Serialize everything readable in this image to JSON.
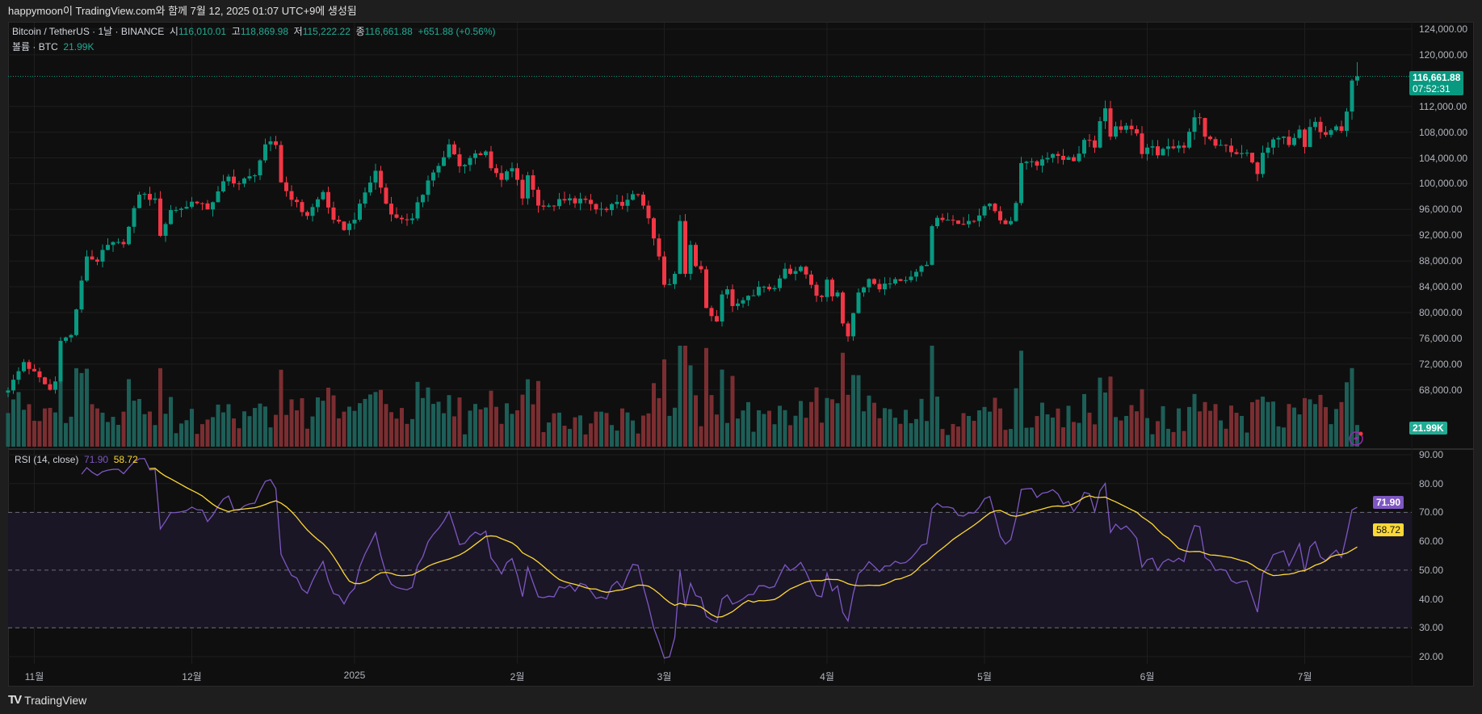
{
  "title": "happymoon이 TradingView.com와 함께 7월 12, 2025 01:07 UTC+9에 생성됨",
  "legend": {
    "symbol": "Bitcoin / TetherUS · 1날 · BINANCE",
    "open_label": "시",
    "open": "116,010.01",
    "high_label": "고",
    "high": "118,869.98",
    "low_label": "저",
    "low": "115,222.22",
    "close_label": "종",
    "close": "116,661.88",
    "change": "+651.88 (+0.56%)",
    "volume_label": "볼륨 · BTC",
    "volume": "21.99K"
  },
  "price_axis": {
    "ticks": [
      "124,000.00",
      "120,000.00",
      "112,000.00",
      "108,000.00",
      "104,000.00",
      "100,000.00",
      "96,000.00",
      "92,000.00",
      "88,000.00",
      "84,000.00",
      "80,000.00",
      "76,000.00",
      "72,000.00",
      "68,000.00"
    ],
    "tick_values": [
      124000,
      120000,
      112000,
      108000,
      104000,
      100000,
      96000,
      92000,
      88000,
      84000,
      80000,
      76000,
      72000,
      68000
    ],
    "last_price": "116,661.88",
    "countdown": "07:52:31",
    "volume_tag": "21.99K"
  },
  "rsi": {
    "label": "RSI (14, close)",
    "value": "71.90",
    "ma_value": "58.72",
    "ticks": [
      "90.00",
      "80.00",
      "70.00",
      "60.00",
      "50.00",
      "40.00",
      "30.00",
      "20.00"
    ],
    "tick_values": [
      90,
      80,
      70,
      60,
      50,
      40,
      30,
      20
    ],
    "upper_band": 70,
    "middle_band": 50,
    "lower_band": 30
  },
  "time_axis": [
    {
      "label": "11월",
      "day": 5
    },
    {
      "label": "12월",
      "day": 35
    },
    {
      "label": "2025",
      "day": 66
    },
    {
      "label": "2월",
      "day": 97
    },
    {
      "label": "3월",
      "day": 125
    },
    {
      "label": "4월",
      "day": 156
    },
    {
      "label": "5월",
      "day": 186
    },
    {
      "label": "6월",
      "day": 217
    },
    {
      "label": "7월",
      "day": 247
    }
  ],
  "colors": {
    "up": "#089981",
    "down": "#f23645",
    "rsi": "#7e57c2",
    "rsi_ma": "#fdd835",
    "last": "#089981"
  },
  "footer": {
    "brand": "TradingView"
  },
  "chart_data": {
    "type": "candlestick",
    "x_unit": "day index from 2024-10-27",
    "close_keypoints": [
      [
        0,
        67900
      ],
      [
        3,
        72300
      ],
      [
        8,
        68000
      ],
      [
        9,
        69300
      ],
      [
        10,
        75600
      ],
      [
        12,
        76500
      ],
      [
        15,
        88700
      ],
      [
        17,
        87900
      ],
      [
        19,
        90500
      ],
      [
        22,
        90600
      ],
      [
        25,
        98300
      ],
      [
        28,
        97700
      ],
      [
        29,
        91900
      ],
      [
        31,
        95900
      ],
      [
        34,
        96400
      ],
      [
        35,
        97200
      ],
      [
        38,
        96000
      ],
      [
        40,
        98800
      ],
      [
        42,
        101100
      ],
      [
        44,
        100000
      ],
      [
        47,
        101300
      ],
      [
        49,
        106100
      ],
      [
        51,
        106000
      ],
      [
        52,
        100200
      ],
      [
        54,
        97500
      ],
      [
        57,
        95000
      ],
      [
        60,
        98700
      ],
      [
        62,
        94400
      ],
      [
        64,
        92800
      ],
      [
        66,
        94400
      ],
      [
        67,
        96900
      ],
      [
        70,
        102000
      ],
      [
        72,
        96900
      ],
      [
        74,
        94700
      ],
      [
        77,
        94600
      ],
      [
        80,
        100500
      ],
      [
        83,
        104100
      ],
      [
        84,
        106100
      ],
      [
        86,
        102700
      ],
      [
        89,
        104700
      ],
      [
        91,
        105000
      ],
      [
        92,
        102400
      ],
      [
        94,
        100600
      ],
      [
        96,
        102400
      ],
      [
        97,
        100600
      ],
      [
        98,
        97700
      ],
      [
        99,
        101300
      ],
      [
        101,
        96600
      ],
      [
        103,
        96600
      ],
      [
        106,
        97400
      ],
      [
        110,
        97500
      ],
      [
        112,
        96000
      ],
      [
        114,
        95900
      ],
      [
        118,
        97500
      ],
      [
        120,
        98300
      ],
      [
        121,
        96600
      ],
      [
        123,
        91500
      ],
      [
        124,
        88700
      ],
      [
        125,
        84300
      ],
      [
        126,
        84400
      ],
      [
        127,
        86000
      ],
      [
        128,
        94200
      ],
      [
        129,
        86000
      ],
      [
        130,
        90500
      ],
      [
        131,
        87200
      ],
      [
        132,
        86700
      ],
      [
        133,
        80700
      ],
      [
        135,
        78600
      ],
      [
        136,
        82800
      ],
      [
        137,
        83600
      ],
      [
        138,
        81000
      ],
      [
        141,
        82600
      ],
      [
        144,
        84000
      ],
      [
        146,
        83800
      ],
      [
        148,
        86800
      ],
      [
        149,
        86000
      ],
      [
        151,
        87100
      ],
      [
        152,
        85900
      ],
      [
        153,
        84300
      ],
      [
        154,
        82600
      ],
      [
        155,
        82400
      ],
      [
        156,
        85100
      ],
      [
        157,
        82500
      ],
      [
        158,
        83100
      ],
      [
        159,
        78300
      ],
      [
        160,
        76300
      ],
      [
        161,
        79900
      ],
      [
        162,
        83100
      ],
      [
        163,
        83900
      ],
      [
        164,
        85200
      ],
      [
        166,
        83600
      ],
      [
        168,
        84500
      ],
      [
        170,
        84900
      ],
      [
        175,
        87400
      ],
      [
        176,
        93400
      ],
      [
        177,
        94700
      ],
      [
        180,
        94300
      ],
      [
        182,
        93700
      ],
      [
        184,
        94200
      ],
      [
        186,
        96500
      ],
      [
        187,
        96900
      ],
      [
        189,
        94300
      ],
      [
        191,
        94200
      ],
      [
        192,
        97000
      ],
      [
        193,
        103200
      ],
      [
        194,
        103400
      ],
      [
        196,
        102800
      ],
      [
        198,
        104000
      ],
      [
        199,
        104600
      ],
      [
        201,
        103700
      ],
      [
        203,
        103500
      ],
      [
        205,
        106800
      ],
      [
        207,
        105600
      ],
      [
        208,
        109700
      ],
      [
        209,
        111700
      ],
      [
        210,
        107300
      ],
      [
        211,
        108900
      ],
      [
        213,
        109000
      ],
      [
        215,
        107800
      ],
      [
        216,
        104600
      ],
      [
        217,
        105600
      ],
      [
        218,
        105800
      ],
      [
        219,
        104400
      ],
      [
        220,
        105400
      ],
      [
        222,
        105500
      ],
      [
        224,
        105600
      ],
      [
        226,
        110300
      ],
      [
        227,
        110200
      ],
      [
        228,
        107300
      ],
      [
        230,
        105900
      ],
      [
        232,
        105900
      ],
      [
        234,
        104600
      ],
      [
        236,
        104800
      ],
      [
        237,
        103300
      ],
      [
        238,
        101500
      ],
      [
        239,
        104800
      ],
      [
        240,
        105600
      ],
      [
        242,
        107100
      ],
      [
        243,
        107300
      ],
      [
        244,
        106000
      ],
      [
        245,
        107100
      ],
      [
        246,
        108400
      ],
      [
        247,
        105700
      ],
      [
        248,
        108800
      ],
      [
        249,
        109600
      ],
      [
        250,
        108000
      ],
      [
        252,
        108300
      ],
      [
        253,
        108900
      ],
      [
        254,
        108200
      ],
      [
        255,
        111200
      ],
      [
        256,
        116010.01
      ],
      [
        257,
        116661.88
      ]
    ],
    "last_candle": {
      "open": 116010.01,
      "high": 118869.98,
      "low": 115222.22,
      "close": 116661.88
    },
    "y_range": [
      64000,
      126000
    ]
  }
}
